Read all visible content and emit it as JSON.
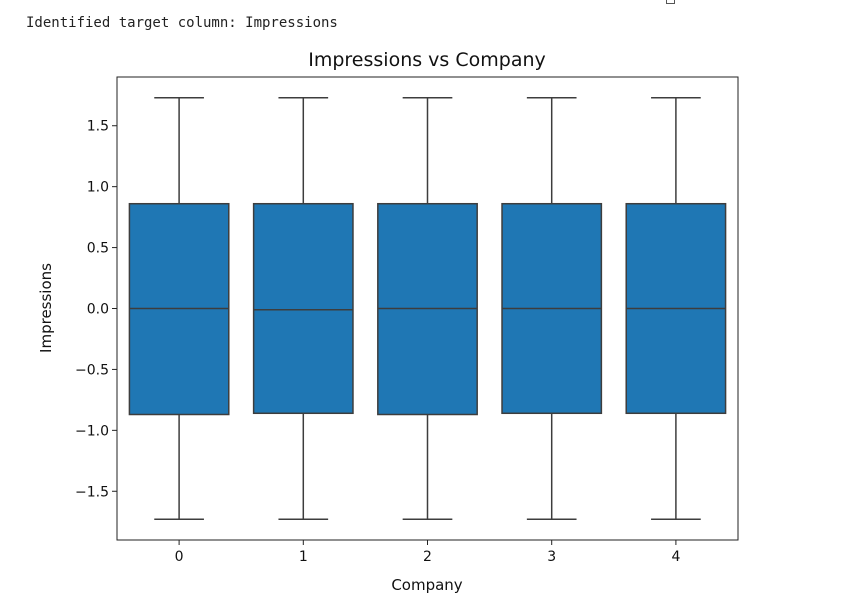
{
  "output": {
    "log_line": "Identified target column: Impressions"
  },
  "icons": {
    "toolbar": "copy-output-icon"
  },
  "chart_data": {
    "type": "boxplot",
    "title": "Impressions vs Company",
    "xlabel": "Company",
    "ylabel": "Impressions",
    "categories": [
      "0",
      "1",
      "2",
      "3",
      "4"
    ],
    "ylim": [
      -1.9,
      1.9
    ],
    "yticks": [
      1.5,
      1.0,
      0.5,
      0.0,
      -0.5,
      -1.0,
      -1.5
    ],
    "ytick_labels": [
      "1.5",
      "1.0",
      "0.5",
      "0.0",
      "−0.5",
      "−1.0",
      "−1.5"
    ],
    "grid": false,
    "box_color": "#1f77b4",
    "boxes": [
      {
        "category": "0",
        "whisker_low": -1.73,
        "q1": -0.87,
        "median": 0.0,
        "q3": 0.86,
        "whisker_high": 1.73
      },
      {
        "category": "1",
        "whisker_low": -1.73,
        "q1": -0.86,
        "median": -0.01,
        "q3": 0.86,
        "whisker_high": 1.73
      },
      {
        "category": "2",
        "whisker_low": -1.73,
        "q1": -0.87,
        "median": 0.0,
        "q3": 0.86,
        "whisker_high": 1.73
      },
      {
        "category": "3",
        "whisker_low": -1.73,
        "q1": -0.86,
        "median": 0.0,
        "q3": 0.86,
        "whisker_high": 1.73
      },
      {
        "category": "4",
        "whisker_low": -1.73,
        "q1": -0.86,
        "median": 0.0,
        "q3": 0.86,
        "whisker_high": 1.73
      }
    ]
  }
}
